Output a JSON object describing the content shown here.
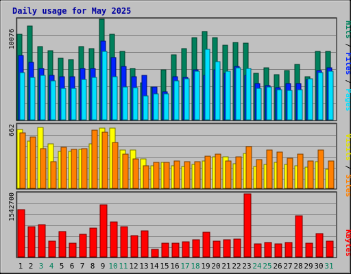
{
  "title": "Daily usage for May 2025",
  "colors": {
    "title": "#0000a0",
    "frame_bg": "#c0c0c0",
    "hits": "#00805c",
    "files": "#0024ff",
    "pages": "#00e0ff",
    "visits": "#ffff00",
    "sites": "#ff8000",
    "kbytes": "#ff0000",
    "weekend_day": "#00805c"
  },
  "legend": {
    "top": {
      "pages": "Pages",
      "sep1": " / ",
      "files": "Files",
      "sep2": " / ",
      "hits": "Hits"
    },
    "middle": {
      "sites": "Sites",
      "sep": " / ",
      "visits": "Visits"
    },
    "bottom": {
      "kbytes": "KBytes"
    }
  },
  "chart_data": [
    {
      "type": "bar",
      "name": "hits-files-pages",
      "categories": [
        "1",
        "2",
        "3",
        "4",
        "5",
        "6",
        "7",
        "8",
        "9",
        "10",
        "11",
        "12",
        "13",
        "14",
        "15",
        "16",
        "17",
        "18",
        "19",
        "20",
        "21",
        "22",
        "23",
        "24",
        "25",
        "26",
        "27",
        "28",
        "29",
        "30",
        "31"
      ],
      "weekend_days": [
        "3",
        "4",
        "10",
        "11",
        "17",
        "18",
        "24",
        "25",
        "31"
      ],
      "ymax_label": "10076",
      "ymax": 10076,
      "series": [
        {
          "name": "Hits",
          "values": [
            8500,
            9300,
            7300,
            6900,
            6100,
            6000,
            7300,
            7100,
            10000,
            8500,
            6800,
            5100,
            3700,
            3300,
            5000,
            6500,
            7100,
            8200,
            8800,
            8200,
            7400,
            7700,
            7600,
            4600,
            5200,
            4500,
            4900,
            5500,
            4300,
            6800,
            6800
          ]
        },
        {
          "name": "Files",
          "values": [
            6400,
            5700,
            5100,
            4400,
            4300,
            4300,
            5100,
            5100,
            7800,
            6200,
            5300,
            4300,
            4400,
            3300,
            2800,
            4300,
            4200,
            5000,
            4400,
            5000,
            4600,
            5300,
            4400,
            3600,
            3400,
            3200,
            3600,
            3600,
            4000,
            4900,
            5200
          ]
        },
        {
          "name": "Pages",
          "values": [
            4700,
            4200,
            4400,
            3900,
            3100,
            3100,
            4000,
            4200,
            6800,
            4300,
            3300,
            3200,
            2400,
            2600,
            2600,
            3900,
            4100,
            4800,
            7000,
            5800,
            4800,
            5200,
            5100,
            3100,
            3300,
            3000,
            2900,
            3000,
            4100,
            4700,
            4800
          ]
        }
      ]
    },
    {
      "type": "bar",
      "name": "visits-sites",
      "categories": [
        "1",
        "2",
        "3",
        "4",
        "5",
        "6",
        "7",
        "8",
        "9",
        "10",
        "11",
        "12",
        "13",
        "14",
        "15",
        "16",
        "17",
        "18",
        "19",
        "20",
        "21",
        "22",
        "23",
        "24",
        "25",
        "26",
        "27",
        "28",
        "29",
        "30",
        "31"
      ],
      "ymax_label": "662",
      "ymax": 662,
      "series": [
        {
          "name": "Visits",
          "values": [
            620,
            500,
            640,
            470,
            390,
            390,
            410,
            470,
            630,
            630,
            400,
            400,
            310,
            240,
            270,
            240,
            230,
            250,
            290,
            330,
            330,
            260,
            370,
            230,
            250,
            270,
            250,
            240,
            220,
            280,
            200
          ]
        },
        {
          "name": "Sites",
          "values": [
            580,
            540,
            420,
            280,
            430,
            410,
            420,
            610,
            590,
            480,
            360,
            310,
            240,
            270,
            270,
            290,
            280,
            280,
            340,
            360,
            290,
            330,
            440,
            300,
            400,
            380,
            320,
            360,
            290,
            400,
            290
          ]
        }
      ]
    },
    {
      "type": "bar",
      "name": "kbytes",
      "categories": [
        "1",
        "2",
        "3",
        "4",
        "5",
        "6",
        "7",
        "8",
        "9",
        "10",
        "11",
        "12",
        "13",
        "14",
        "15",
        "16",
        "17",
        "18",
        "19",
        "20",
        "21",
        "22",
        "23",
        "24",
        "25",
        "26",
        "27",
        "28",
        "29",
        "30",
        "31"
      ],
      "ymax_label": "1542700",
      "ymax": 1542700,
      "series": [
        {
          "name": "KBytes",
          "values": [
            1150000,
            740000,
            790000,
            390000,
            620000,
            330000,
            550000,
            710000,
            1280000,
            860000,
            740000,
            520000,
            630000,
            180000,
            340000,
            340000,
            370000,
            420000,
            610000,
            380000,
            420000,
            440000,
            1540000,
            320000,
            350000,
            320000,
            360000,
            1010000,
            330000,
            570000,
            380000
          ]
        }
      ]
    }
  ]
}
